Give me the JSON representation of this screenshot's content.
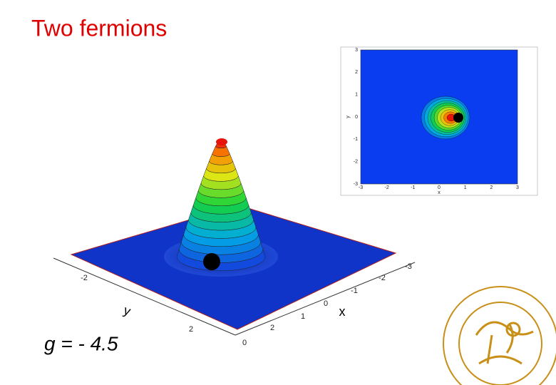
{
  "title": "Two fermions",
  "coupling_label": "g = - 4.5",
  "surface_plot": {
    "y_axis": {
      "label": "y",
      "ticks": [
        "-2",
        "2"
      ]
    },
    "x_axis": {
      "label": "x",
      "ticks": [
        "0",
        "2",
        "1",
        "0",
        "-1",
        "-2",
        "-3"
      ]
    }
  },
  "contour_plot": {
    "x_axis": {
      "label": "x",
      "ticks": [
        "-3",
        "-2",
        "-1",
        "0",
        "1",
        "2",
        "3"
      ]
    },
    "y_axis": {
      "label": "y",
      "ticks": [
        "3",
        "2",
        "1",
        "0",
        "-1",
        "-2",
        "-3"
      ]
    }
  }
}
